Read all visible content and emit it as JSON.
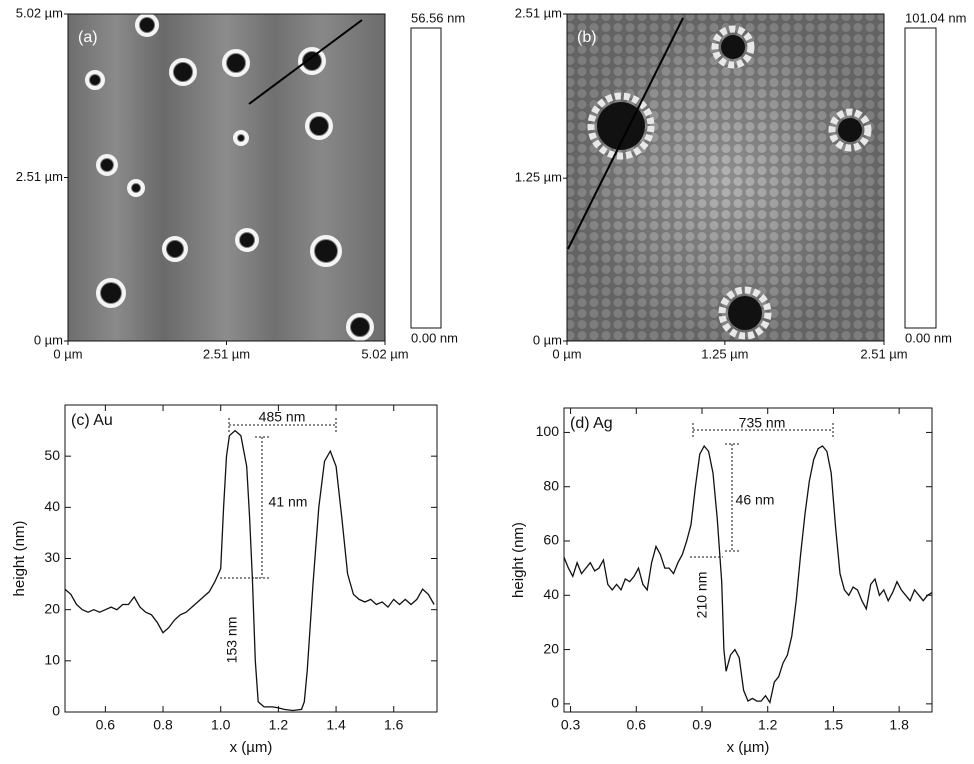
{
  "chart_data": [
    {
      "type": "image",
      "title": "(a)",
      "xlim": [
        0,
        5.02
      ],
      "ylim": [
        0,
        5.02
      ],
      "xticks": [
        {
          "value": 0,
          "label": "0 µm"
        },
        {
          "value": 2.51,
          "label": "2.51 µm"
        },
        {
          "value": 5.02,
          "label": "5.02 µm"
        }
      ],
      "yticks": [
        {
          "value": 0,
          "label": "0 µm"
        },
        {
          "value": 2.51,
          "label": "2.51 µm"
        },
        {
          "value": 5.02,
          "label": "5.02 µm"
        }
      ],
      "clim": [
        0,
        56.56
      ],
      "cticks": [
        {
          "value": 0,
          "label": "0.00 nm"
        },
        {
          "value": 56.56,
          "label": "56.56 nm"
        }
      ]
    },
    {
      "type": "image",
      "title": "(b)",
      "xlim": [
        0,
        2.51
      ],
      "ylim": [
        0,
        2.51
      ],
      "xticks": [
        {
          "value": 0,
          "label": "0 µm"
        },
        {
          "value": 1.25,
          "label": "1.25 µm"
        },
        {
          "value": 2.51,
          "label": "2.51 µm"
        }
      ],
      "yticks": [
        {
          "value": 0,
          "label": "0 µm"
        },
        {
          "value": 1.25,
          "label": "1.25 µm"
        },
        {
          "value": 2.51,
          "label": "2.51 µm"
        }
      ],
      "clim": [
        0,
        101.04
      ],
      "cticks": [
        {
          "value": 0,
          "label": "0.00 nm"
        },
        {
          "value": 101.04,
          "label": "101.04 nm"
        }
      ]
    },
    {
      "type": "line",
      "title": "(c) Au",
      "x_label": "x (µm)",
      "y_label": "height (nm)",
      "color": "#111111",
      "xlim": [
        0.46,
        1.75
      ],
      "ylim": [
        0,
        60
      ],
      "xticks": [
        0.6,
        0.8,
        {
          "value": 1.0,
          "label": "1.0"
        },
        1.2,
        1.4,
        1.6
      ],
      "yticks": [
        0,
        10,
        20,
        30,
        40,
        50
      ],
      "annotations": [
        "485 nm",
        "41 nm",
        "153 nm"
      ],
      "x": [
        0.46,
        0.48,
        0.5,
        0.52,
        0.54,
        0.56,
        0.58,
        0.6,
        0.62,
        0.64,
        0.66,
        0.68,
        0.7,
        0.72,
        0.74,
        0.76,
        0.78,
        0.8,
        0.82,
        0.84,
        0.86,
        0.88,
        0.9,
        0.92,
        0.94,
        0.96,
        0.98,
        1.0,
        1.01,
        1.02,
        1.03,
        1.05,
        1.07,
        1.09,
        1.1,
        1.11,
        1.12,
        1.13,
        1.15,
        1.18,
        1.2,
        1.22,
        1.25,
        1.28,
        1.29,
        1.3,
        1.32,
        1.34,
        1.36,
        1.38,
        1.4,
        1.42,
        1.44,
        1.46,
        1.48,
        1.5,
        1.52,
        1.54,
        1.56,
        1.58,
        1.6,
        1.62,
        1.64,
        1.66,
        1.68,
        1.7,
        1.72,
        1.74
      ],
      "values": [
        24,
        23,
        21,
        20,
        19.5,
        20,
        19.5,
        20,
        20.5,
        20,
        21,
        21,
        22.5,
        20.5,
        19.5,
        19,
        17.5,
        15.5,
        16.5,
        18,
        19,
        19.5,
        20.5,
        21.5,
        22.5,
        23.5,
        25.5,
        28,
        40,
        50,
        54,
        55,
        54,
        48,
        38,
        26,
        10,
        2,
        1,
        1,
        0.8,
        0.5,
        0.3,
        0.5,
        2,
        8,
        25,
        40,
        49,
        51,
        48,
        38,
        27,
        23,
        22,
        21.5,
        22,
        21,
        21.5,
        20.5,
        22,
        21,
        22,
        21,
        22,
        24,
        23,
        21
      ]
    },
    {
      "type": "line",
      "title": "(d) Ag",
      "x_label": "x (µm)",
      "y_label": "height (nm)",
      "color": "#111111",
      "xlim": [
        0.27,
        1.95
      ],
      "ylim": [
        -3,
        109
      ],
      "xticks": [
        0.3,
        0.6,
        0.9,
        1.2,
        1.5,
        1.8
      ],
      "yticks": [
        0,
        20,
        40,
        60,
        80,
        100
      ],
      "annotations": [
        "735 nm",
        "46 nm",
        "210 nm"
      ],
      "x": [
        0.27,
        0.29,
        0.31,
        0.33,
        0.35,
        0.37,
        0.39,
        0.41,
        0.43,
        0.45,
        0.47,
        0.49,
        0.51,
        0.53,
        0.55,
        0.57,
        0.59,
        0.61,
        0.63,
        0.65,
        0.67,
        0.69,
        0.71,
        0.73,
        0.75,
        0.77,
        0.79,
        0.81,
        0.83,
        0.85,
        0.87,
        0.89,
        0.91,
        0.93,
        0.95,
        0.97,
        0.99,
        1.0,
        1.01,
        1.03,
        1.05,
        1.07,
        1.09,
        1.11,
        1.13,
        1.15,
        1.17,
        1.19,
        1.21,
        1.23,
        1.25,
        1.27,
        1.29,
        1.31,
        1.33,
        1.35,
        1.37,
        1.39,
        1.41,
        1.43,
        1.45,
        1.47,
        1.49,
        1.51,
        1.53,
        1.55,
        1.57,
        1.59,
        1.61,
        1.63,
        1.65,
        1.67,
        1.69,
        1.71,
        1.73,
        1.75,
        1.77,
        1.79,
        1.81,
        1.83,
        1.85,
        1.87,
        1.89,
        1.91,
        1.93,
        1.95
      ],
      "values": [
        54,
        50,
        47,
        52,
        48,
        50,
        52,
        49,
        50,
        53,
        44,
        42,
        44,
        42,
        46,
        45,
        47,
        50,
        44,
        42,
        52,
        58,
        55,
        50,
        50,
        48,
        52,
        55,
        60,
        66,
        80,
        92,
        95,
        93,
        85,
        68,
        45,
        20,
        12,
        18,
        20,
        17,
        5,
        1,
        2,
        1,
        1,
        3,
        0.5,
        8,
        10,
        15,
        18,
        25,
        38,
        55,
        70,
        82,
        90,
        94,
        95,
        93,
        85,
        65,
        48,
        42,
        40,
        43,
        42,
        38,
        35,
        44,
        46,
        40,
        42,
        38,
        41,
        45,
        42,
        40,
        38,
        42,
        40,
        38,
        40,
        41
      ]
    }
  ]
}
